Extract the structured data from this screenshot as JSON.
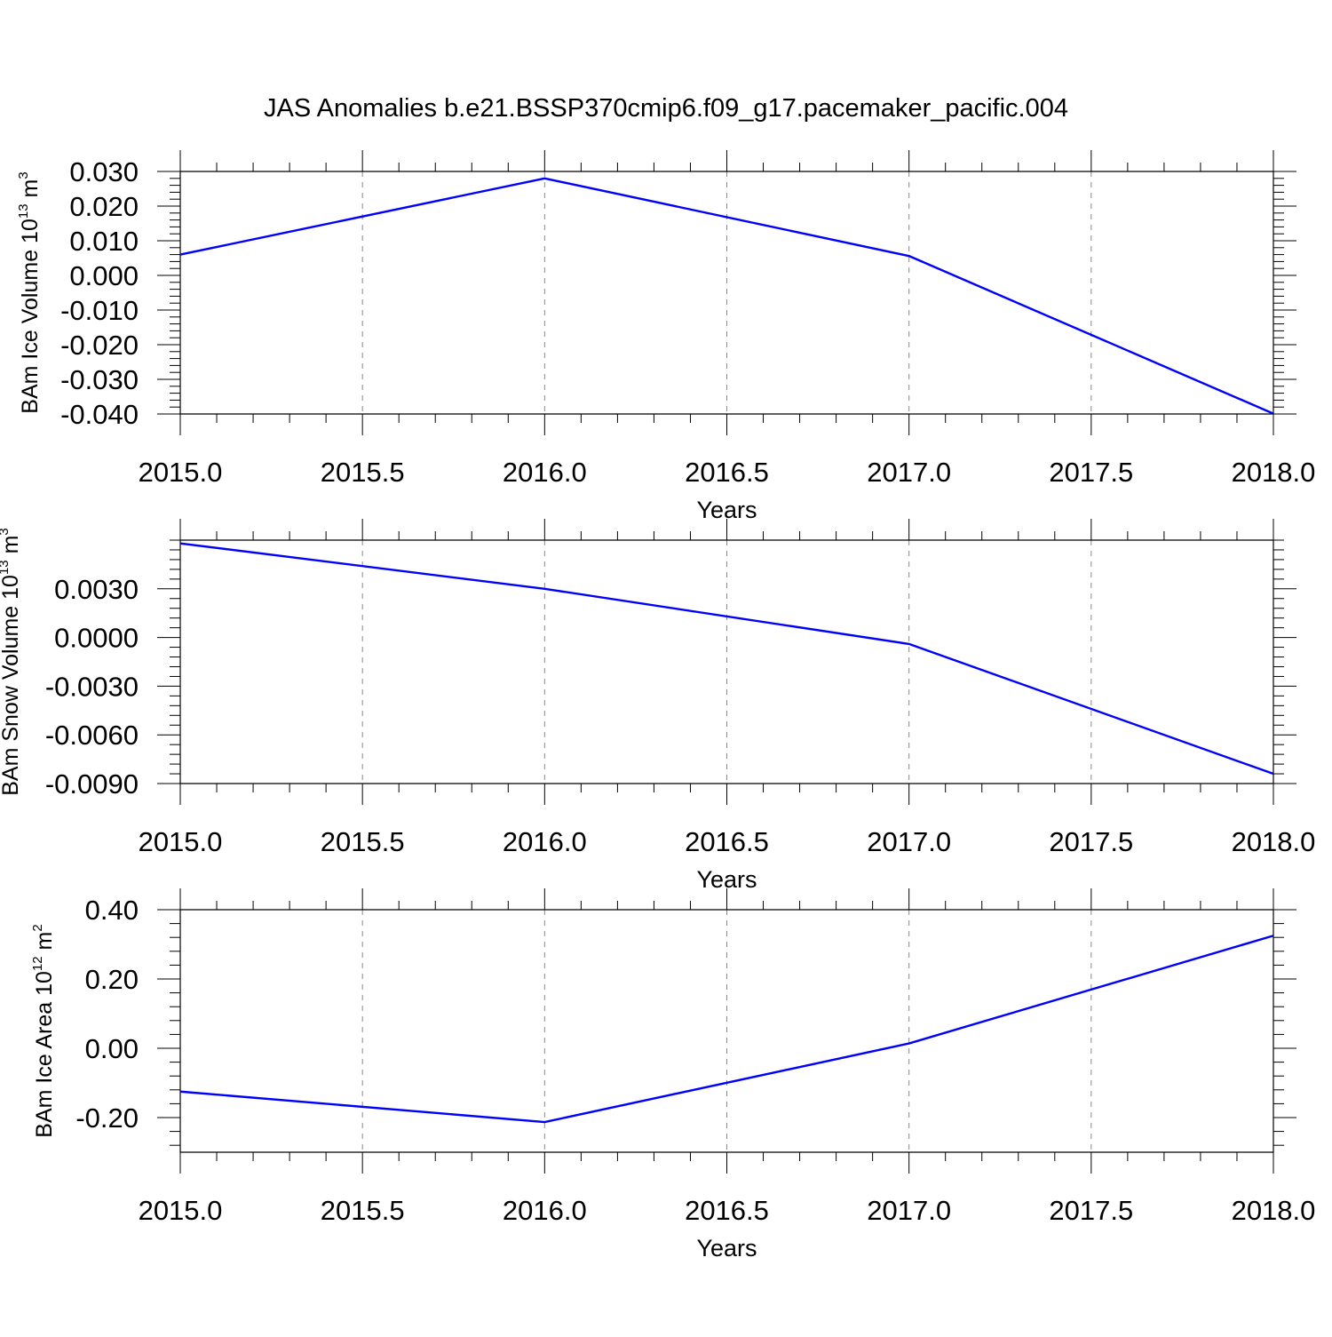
{
  "title": "JAS Anomalies b.e21.BSSP370cmip6.f09_g17.pacemaker_pacific.004",
  "chart_data": [
    {
      "type": "line",
      "ylabel": {
        "text": "BAm Ice Volume 10",
        "exponent": "13",
        "unit": " m",
        "unit_exponent": "3"
      },
      "xlabel": "Years",
      "xlim": [
        2015,
        2018
      ],
      "ylim": [
        -0.04,
        0.03
      ],
      "xticks": [
        "2015.0",
        "2015.5",
        "2016.0",
        "2016.5",
        "2017.0",
        "2017.5",
        "2018.0"
      ],
      "yticks": [
        {
          "value": 0.03,
          "label": "0.030"
        },
        {
          "value": 0.02,
          "label": "0.020"
        },
        {
          "value": 0.01,
          "label": "0.010"
        },
        {
          "value": 0.0,
          "label": "0.000"
        },
        {
          "value": -0.01,
          "label": "-0.010"
        },
        {
          "value": -0.02,
          "label": "-0.020"
        },
        {
          "value": -0.03,
          "label": "-0.030"
        },
        {
          "value": -0.04,
          "label": "-0.040"
        }
      ],
      "grid": "vertical-dashed",
      "series": [
        {
          "color": "#0000ff",
          "x": [
            2015,
            2016,
            2017,
            2018
          ],
          "y": [
            0.006,
            0.028,
            0.0056,
            -0.0399
          ]
        }
      ]
    },
    {
      "type": "line",
      "ylabel": {
        "text": "BAm Snow Volume 10",
        "exponent": "13",
        "unit": " m",
        "unit_exponent": "3"
      },
      "xlabel": "Years",
      "xlim": [
        2015,
        2018
      ],
      "ylim": [
        -0.009,
        0.006
      ],
      "xticks": [
        "2015.0",
        "2015.5",
        "2016.0",
        "2016.5",
        "2017.0",
        "2017.5",
        "2018.0"
      ],
      "yticks": [
        {
          "value": 0.003,
          "label": "0.0030"
        },
        {
          "value": 0.0,
          "label": "0.0000"
        },
        {
          "value": -0.003,
          "label": "-0.0030"
        },
        {
          "value": -0.006,
          "label": "-0.0060"
        },
        {
          "value": -0.009,
          "label": "-0.0090"
        }
      ],
      "grid": "vertical-dashed",
      "series": [
        {
          "color": "#0000ff",
          "x": [
            2015,
            2016,
            2017,
            2018
          ],
          "y": [
            0.0058,
            0.003,
            -0.0004,
            -0.0084
          ]
        }
      ]
    },
    {
      "type": "line",
      "ylabel": {
        "text": "BAm Ice Area 10",
        "exponent": "12",
        "unit": " m",
        "unit_exponent": "2"
      },
      "xlabel": "Years",
      "xlim": [
        2015,
        2018
      ],
      "ylim": [
        -0.3,
        0.4
      ],
      "xticks": [
        "2015.0",
        "2015.5",
        "2016.0",
        "2016.5",
        "2017.0",
        "2017.5",
        "2018.0"
      ],
      "yticks": [
        {
          "value": 0.4,
          "label": "0.40"
        },
        {
          "value": 0.2,
          "label": "0.20"
        },
        {
          "value": 0.0,
          "label": "0.00"
        },
        {
          "value": -0.2,
          "label": "-0.20"
        }
      ],
      "grid": "vertical-dashed",
      "series": [
        {
          "color": "#0000ff",
          "x": [
            2015,
            2016,
            2017,
            2018
          ],
          "y": [
            -0.125,
            -0.213,
            0.014,
            0.325
          ]
        }
      ]
    }
  ]
}
